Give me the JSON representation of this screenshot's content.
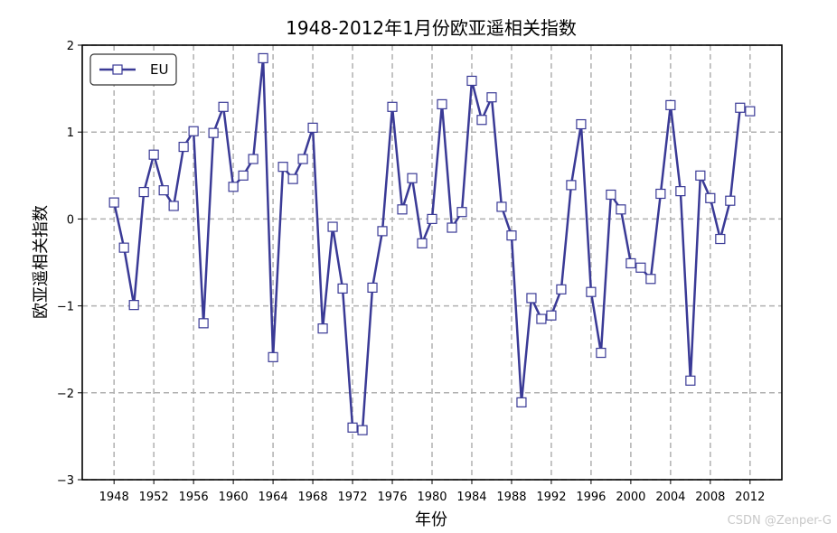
{
  "chart_data": {
    "type": "line",
    "title": "1948-2012年1月份欧亚遥相关指数",
    "xlabel": "年份",
    "ylabel": "欧亚遥相关指数",
    "xlim": [
      1944.8,
      2015.2
    ],
    "ylim": [
      -3,
      2
    ],
    "xticks": [
      1948,
      1952,
      1956,
      1960,
      1964,
      1968,
      1972,
      1976,
      1980,
      1984,
      1988,
      1992,
      1996,
      2000,
      2004,
      2008,
      2012
    ],
    "yticks": [
      2,
      1,
      0,
      -1,
      -2,
      -3
    ],
    "ytick_labels": [
      "2",
      "1",
      "0",
      "−1",
      "−2",
      "−3"
    ],
    "grid": true,
    "legend_position": "top-left",
    "series": [
      {
        "name": "EU",
        "color": "#3a3a96",
        "marker": "square",
        "x": [
          1948,
          1949,
          1950,
          1951,
          1952,
          1953,
          1954,
          1955,
          1956,
          1957,
          1958,
          1959,
          1960,
          1961,
          1962,
          1963,
          1964,
          1965,
          1966,
          1967,
          1968,
          1969,
          1970,
          1971,
          1972,
          1973,
          1974,
          1975,
          1976,
          1977,
          1978,
          1979,
          1980,
          1981,
          1982,
          1983,
          1984,
          1985,
          1986,
          1987,
          1988,
          1989,
          1990,
          1991,
          1992,
          1993,
          1994,
          1995,
          1996,
          1997,
          1998,
          1999,
          2000,
          2001,
          2002,
          2003,
          2004,
          2005,
          2006,
          2007,
          2008,
          2009,
          2010,
          2011,
          2012
        ],
        "values": [
          0.19,
          -0.33,
          -0.99,
          0.31,
          0.74,
          0.33,
          0.15,
          0.83,
          1.01,
          -1.2,
          0.99,
          1.29,
          0.37,
          0.5,
          0.69,
          1.85,
          -1.59,
          0.6,
          0.46,
          0.69,
          1.05,
          -1.26,
          -0.09,
          -0.8,
          -2.4,
          -2.43,
          -0.79,
          -0.14,
          1.29,
          0.11,
          0.47,
          -0.28,
          0.0,
          1.32,
          -0.1,
          0.08,
          1.59,
          1.14,
          1.4,
          0.14,
          -0.19,
          -2.11,
          -0.91,
          -1.15,
          -1.11,
          -0.81,
          0.39,
          1.09,
          -0.84,
          -1.54,
          0.28,
          0.11,
          -0.51,
          -0.56,
          -0.69,
          0.29,
          1.31,
          0.32,
          -1.86,
          0.5,
          0.24,
          -0.23,
          0.21,
          1.28,
          1.24
        ]
      }
    ]
  },
  "watermark": "CSDN @Zenper-G"
}
